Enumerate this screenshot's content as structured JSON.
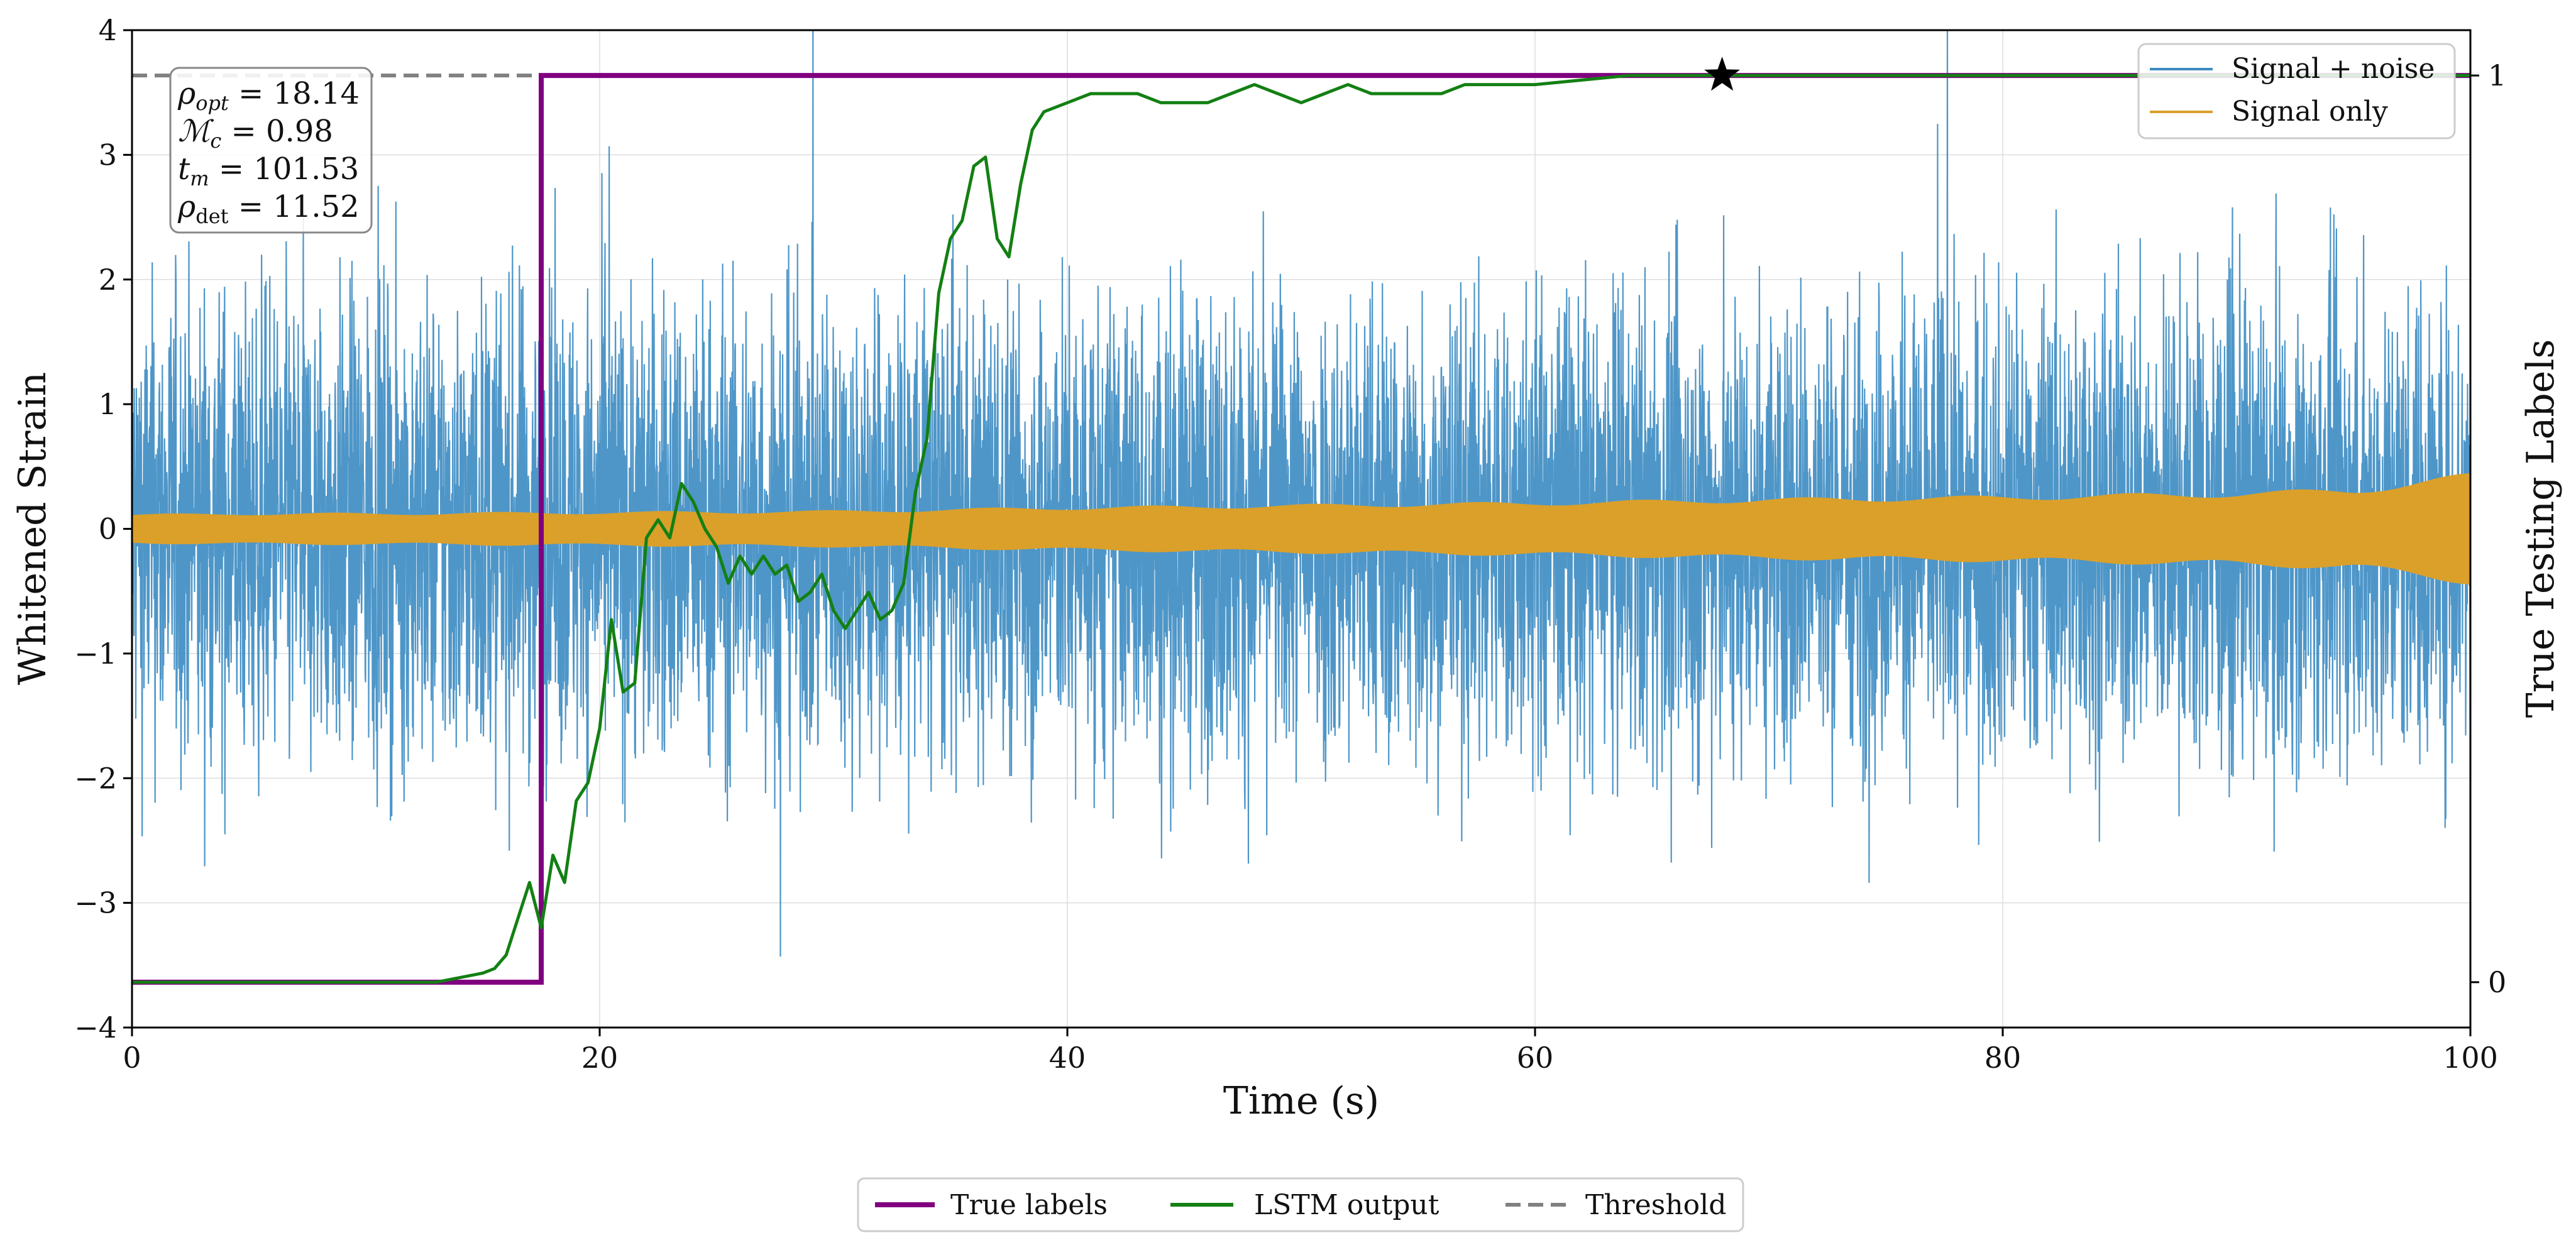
{
  "chart_data": {
    "type": "line",
    "xlabel": "Time (s)",
    "ylabel": "Whitened Strain",
    "ylabel_right": "True Testing Labels",
    "xlim": [
      0,
      100
    ],
    "ylim": [
      -4,
      4
    ],
    "ylim_right": [
      -0.05,
      1.05
    ],
    "x_ticks": [
      "0",
      "20",
      "40",
      "60",
      "80",
      "100"
    ],
    "y_ticks": [
      "−4",
      "−3",
      "−2",
      "−1",
      "0",
      "1",
      "2",
      "3",
      "4"
    ],
    "y_right_ticks": [
      "0",
      "1"
    ],
    "grid": true,
    "annotations": {
      "rho_opt": "ρopt = 18.14",
      "mc": "Mc = 0.98",
      "tm": "tm = 101.53",
      "rho_det": "ρdet = 11.52",
      "rho_opt_value": "18.14",
      "mc_value": "0.98",
      "tm_value": "101.53",
      "rho_det_value": "11.52"
    },
    "legend_top": [
      "Signal + noise",
      "Signal only"
    ],
    "legend_bottom": [
      "True labels",
      "LSTM output",
      "Threshold"
    ],
    "threshold": 1.0,
    "detection_marker": {
      "x": 68,
      "y": 1.0
    },
    "series": [
      {
        "name": "Signal + noise",
        "axis": "left",
        "color": "#3b8bc2",
        "description": "noisy whitened strain, amplitude roughly ±3.5 around 0",
        "noise_amplitude": 2.2
      },
      {
        "name": "Signal only",
        "axis": "left",
        "color": "#daa02a",
        "envelope_x": [
          0,
          5,
          10,
          20,
          30,
          40,
          50,
          60,
          70,
          80,
          90,
          95,
          100
        ],
        "envelope": [
          0.12,
          0.13,
          0.13,
          0.14,
          0.15,
          0.18,
          0.2,
          0.22,
          0.25,
          0.27,
          0.3,
          0.33,
          0.45
        ]
      },
      {
        "name": "True labels",
        "axis": "right",
        "color": "#800080",
        "x": [
          0,
          17.5,
          17.5,
          100
        ],
        "values": [
          0,
          0,
          1,
          1
        ]
      },
      {
        "name": "LSTM output",
        "axis": "right",
        "color": "#138013",
        "x": [
          0,
          13,
          14,
          15,
          15.5,
          16,
          16.5,
          17,
          17.5,
          18,
          18.5,
          19,
          19.5,
          20,
          20.5,
          21,
          21.5,
          22,
          22.5,
          23,
          23.5,
          24,
          24.5,
          25,
          25.5,
          26,
          26.5,
          27,
          27.5,
          28,
          28.5,
          29,
          29.5,
          30,
          30.5,
          31,
          31.5,
          32,
          32.5,
          33,
          33.5,
          34,
          34.5,
          35,
          35.5,
          36,
          36.5,
          37,
          37.5,
          38,
          38.5,
          39,
          40,
          41,
          42,
          43,
          44,
          45,
          46,
          47,
          48,
          49,
          50,
          51,
          52,
          53,
          54,
          55,
          56,
          57,
          58,
          59,
          60,
          62,
          64,
          66,
          68,
          70,
          75,
          80,
          85,
          90,
          95,
          100
        ],
        "values": [
          0,
          0,
          0.005,
          0.01,
          0.015,
          0.03,
          0.07,
          0.11,
          0.06,
          0.14,
          0.11,
          0.2,
          0.22,
          0.28,
          0.4,
          0.32,
          0.33,
          0.49,
          0.51,
          0.49,
          0.55,
          0.53,
          0.5,
          0.48,
          0.44,
          0.47,
          0.45,
          0.47,
          0.45,
          0.46,
          0.42,
          0.43,
          0.45,
          0.41,
          0.39,
          0.41,
          0.43,
          0.4,
          0.41,
          0.44,
          0.54,
          0.6,
          0.76,
          0.82,
          0.84,
          0.9,
          0.91,
          0.82,
          0.8,
          0.88,
          0.94,
          0.96,
          0.97,
          0.98,
          0.98,
          0.98,
          0.97,
          0.97,
          0.97,
          0.98,
          0.99,
          0.98,
          0.97,
          0.98,
          0.99,
          0.98,
          0.98,
          0.98,
          0.98,
          0.99,
          0.99,
          0.99,
          0.99,
          0.995,
          1,
          1,
          1,
          1,
          1,
          1,
          1,
          1,
          1,
          1
        ]
      },
      {
        "name": "Threshold",
        "axis": "right",
        "color": "#808080",
        "style": "dashed",
        "values": [
          1,
          1
        ]
      }
    ]
  }
}
